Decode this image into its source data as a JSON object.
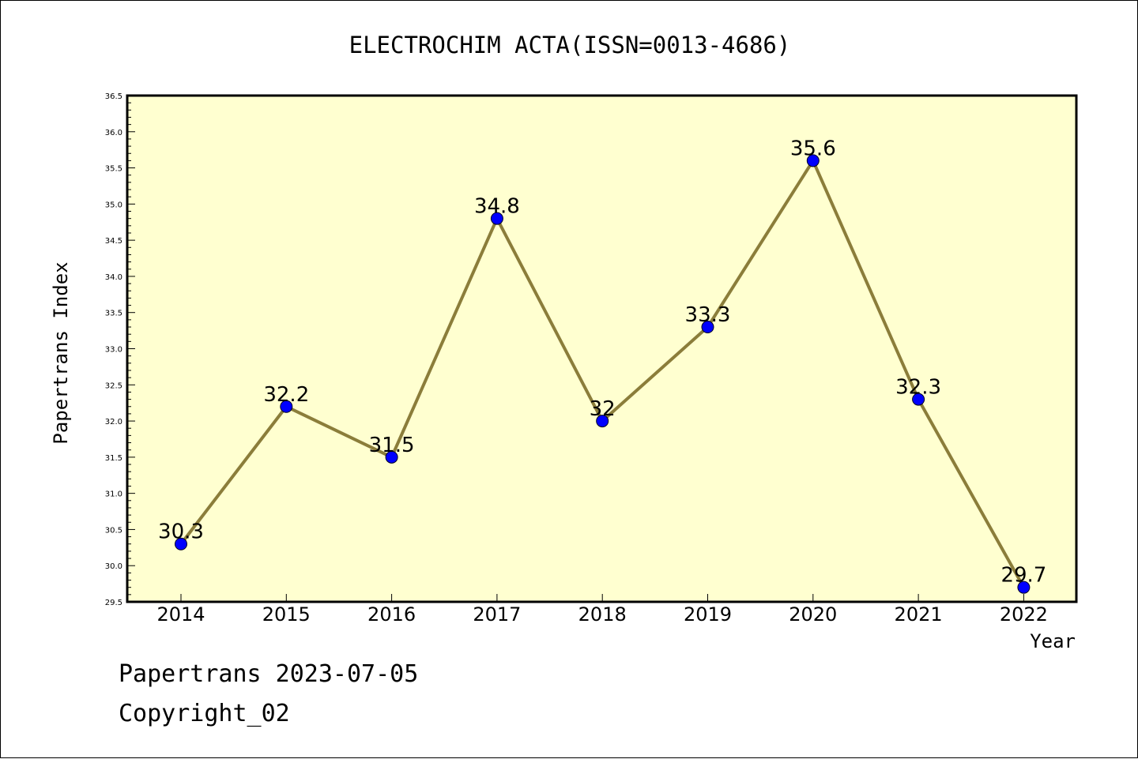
{
  "chart_data": {
    "type": "line",
    "title": "ELECTROCHIM ACTA(ISSN=0013-4686)",
    "xlabel": "Year",
    "ylabel": "Papertrans Index",
    "categories": [
      "2014",
      "2015",
      "2016",
      "2017",
      "2018",
      "2019",
      "2020",
      "2021",
      "2022"
    ],
    "series": [
      {
        "values": [
          30.3,
          32.2,
          31.5,
          34.8,
          32.0,
          33.3,
          35.6,
          32.3,
          29.7
        ],
        "data_labels": [
          "30.3",
          "32.2",
          "31.5",
          "34.8",
          "32",
          "33.3",
          "35.6",
          "32.3",
          "29.7"
        ],
        "line_color": "#8b7d3a",
        "marker_color": "#0000ff"
      }
    ],
    "ylim": [
      29.5,
      36.5
    ],
    "y_ticks": [
      "29.5",
      "30.0",
      "30.5",
      "31.0",
      "31.5",
      "32.0",
      "32.5",
      "33.0",
      "33.5",
      "34.0",
      "34.5",
      "35.0",
      "35.5",
      "36.0",
      "36.5"
    ],
    "grid": false,
    "legend": "none",
    "plot_background": "#ffffd0"
  },
  "footer": {
    "line1": "Papertrans 2023-07-05",
    "line2": "Copyright_02"
  }
}
